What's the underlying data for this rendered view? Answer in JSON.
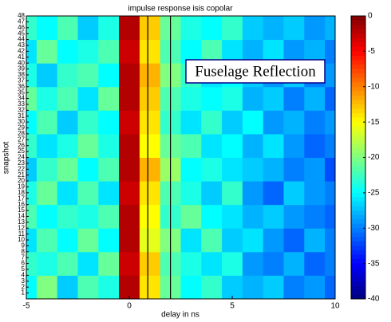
{
  "chart_data": {
    "type": "heatmap",
    "title": "impulse response isis copolar",
    "xlabel": "delay in ns",
    "ylabel": "snapshot",
    "colormap": "jet",
    "x": [
      -5,
      -4,
      -3,
      -2,
      -1,
      0,
      1,
      2,
      3,
      4,
      5,
      6,
      7,
      8,
      9,
      10
    ],
    "y": [
      2,
      6,
      10,
      14,
      18,
      22,
      26,
      30,
      34,
      38,
      42,
      46
    ],
    "values": [
      [
        -25,
        -20,
        -27,
        -22,
        -24,
        -2,
        -14,
        -21,
        -25,
        -23,
        -27,
        -28,
        -27,
        -30,
        -29,
        -31
      ],
      [
        -23,
        -24,
        -22,
        -26,
        -21,
        -3,
        -13,
        -22,
        -24,
        -26,
        -24,
        -29,
        -30,
        -28,
        -31,
        -30
      ],
      [
        -26,
        -22,
        -25,
        -21,
        -25,
        -2,
        -16,
        -20,
        -26,
        -22,
        -27,
        -26,
        -29,
        -31,
        -28,
        -30
      ],
      [
        -22,
        -25,
        -23,
        -24,
        -22,
        -2,
        -15,
        -23,
        -21,
        -25,
        -26,
        -28,
        -27,
        -29,
        -30,
        -31
      ],
      [
        -24,
        -21,
        -26,
        -22,
        -26,
        -3,
        -14,
        -22,
        -24,
        -27,
        -23,
        -29,
        -31,
        -27,
        -29,
        -30
      ],
      [
        -27,
        -23,
        -21,
        -25,
        -22,
        -2,
        -12,
        -19,
        -25,
        -24,
        -26,
        -27,
        -28,
        -30,
        -29,
        -32
      ],
      [
        -23,
        -26,
        -24,
        -21,
        -24,
        -2,
        -15,
        -21,
        -22,
        -26,
        -25,
        -28,
        -26,
        -29,
        -31,
        -30
      ],
      [
        -25,
        -22,
        -27,
        -23,
        -25,
        -3,
        -14,
        -23,
        -26,
        -23,
        -27,
        -25,
        -29,
        -28,
        -30,
        -29
      ],
      [
        -21,
        -24,
        -22,
        -26,
        -21,
        -2,
        -13,
        -22,
        -24,
        -25,
        -24,
        -28,
        -27,
        -30,
        -28,
        -31
      ],
      [
        -24,
        -27,
        -23,
        -22,
        -25,
        -2,
        -12,
        -20,
        -23,
        -26,
        -25,
        -27,
        -29,
        -27,
        -30,
        -29
      ],
      [
        -26,
        -21,
        -25,
        -24,
        -22,
        -3,
        -14,
        -22,
        -25,
        -22,
        -26,
        -28,
        -26,
        -29,
        -28,
        -30
      ],
      [
        -23,
        -25,
        -22,
        -27,
        -24,
        -2,
        -13,
        -21,
        -24,
        -25,
        -23,
        -27,
        -28,
        -27,
        -29,
        -28
      ]
    ],
    "xlim": [
      -5,
      10
    ],
    "xticks": [
      -5,
      0,
      5,
      10
    ],
    "ylim": [
      0,
      48
    ],
    "yticks": [
      1,
      2,
      3,
      4,
      5,
      6,
      7,
      8,
      9,
      10,
      11,
      12,
      13,
      14,
      15,
      16,
      17,
      18,
      19,
      20,
      21,
      22,
      23,
      24,
      25,
      26,
      27,
      28,
      29,
      30,
      31,
      32,
      33,
      34,
      35,
      36,
      37,
      38,
      39,
      40,
      41,
      42,
      43,
      44,
      45,
      46,
      47,
      48
    ],
    "clim": [
      -40,
      0
    ],
    "cticks": [
      0,
      -5,
      -10,
      -15,
      -20,
      -25,
      -30,
      -35,
      -40
    ],
    "highlight_x": [
      0.9,
      2.0
    ],
    "annotation": "Fuselage Reflection"
  }
}
